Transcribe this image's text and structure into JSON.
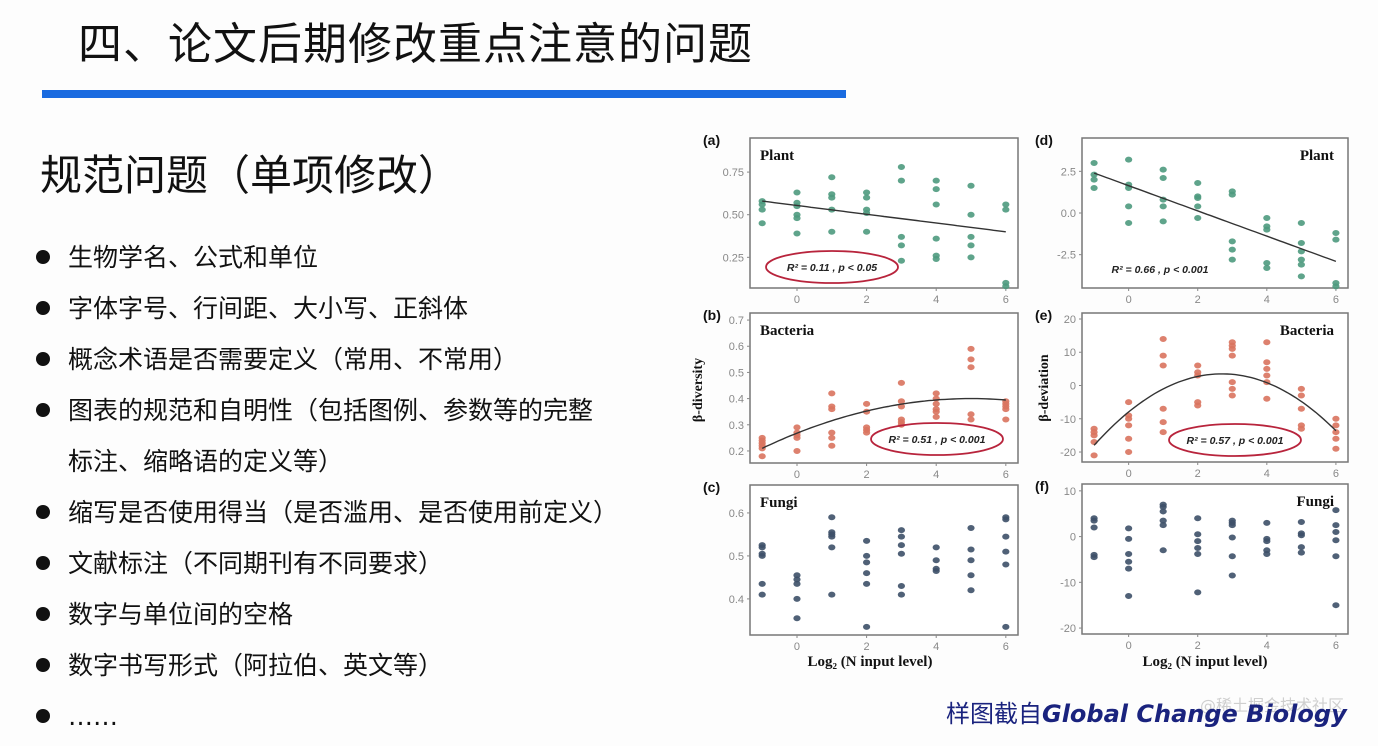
{
  "slide": {
    "title": "四、论文后期修改重点注意的问题",
    "accent_color": "#1a6be0",
    "subheading": "规范问题（单项修改）",
    "bullets": [
      "生物学名、公式和单位",
      "字体字号、行间距、大小写、正斜体",
      "概念术语是否需要定义（常用、不常用）",
      "图表的规范和自明性（包括图例、参数等的完整",
      "标注、缩略语的定义等）",
      "缩写是否使用得当（是否滥用、是否使用前定义）",
      "文献标注（不同期刊有不同要求）",
      "数字与单位间的空格",
      "数字书写形式（阿拉伯、英文等）",
      "……"
    ],
    "caption_prefix": "样图截自",
    "caption_journal": "Global Change Biology",
    "caption_color": "#1a237e",
    "watermark": "@稀土掘金技术社区"
  },
  "figure": {
    "y_label_left": "β-diversity",
    "y_label_right": "β-deviation",
    "x_label": "Log₂ (N input level)",
    "highlight_color": "#b8243c"
  },
  "chart_data": [
    {
      "type": "scatter",
      "panel": "(a)",
      "title": "Plant",
      "color": "#4e9a7e",
      "xlim": [
        -1.35,
        6.35
      ],
      "ylim": [
        0.07,
        0.95
      ],
      "x_ticks": [
        0,
        2,
        4,
        6
      ],
      "x_tick_labels": [
        "0",
        "2",
        "4",
        "6"
      ],
      "y_ticks": [
        0.25,
        0.5,
        0.75
      ],
      "y_tick_labels": [
        "0.25",
        "0.50",
        "0.75"
      ],
      "fit": {
        "kind": "linear",
        "coef": [
          0.554,
          -0.0257
        ]
      },
      "stats": "R² = 0.11 ,  p < 0.05",
      "highlighted": true,
      "points": [
        [
          -1,
          0.58
        ],
        [
          -1,
          0.56
        ],
        [
          -1,
          0.53
        ],
        [
          -1,
          0.45
        ],
        [
          0,
          0.63
        ],
        [
          0,
          0.57
        ],
        [
          0,
          0.55
        ],
        [
          0,
          0.5
        ],
        [
          0,
          0.48
        ],
        [
          0,
          0.39
        ],
        [
          1,
          0.72
        ],
        [
          1,
          0.62
        ],
        [
          1,
          0.6
        ],
        [
          1,
          0.53
        ],
        [
          1,
          0.4
        ],
        [
          2,
          0.63
        ],
        [
          2,
          0.6
        ],
        [
          2,
          0.53
        ],
        [
          2,
          0.51
        ],
        [
          2,
          0.4
        ],
        [
          3,
          0.78
        ],
        [
          3,
          0.7
        ],
        [
          3,
          0.37
        ],
        [
          3,
          0.32
        ],
        [
          3,
          0.23
        ],
        [
          4,
          0.7
        ],
        [
          4,
          0.65
        ],
        [
          4,
          0.56
        ],
        [
          4,
          0.36
        ],
        [
          4,
          0.26
        ],
        [
          4,
          0.24
        ],
        [
          5,
          0.67
        ],
        [
          5,
          0.5
        ],
        [
          5,
          0.37
        ],
        [
          5,
          0.32
        ],
        [
          5,
          0.25
        ],
        [
          6,
          0.56
        ],
        [
          6,
          0.53
        ],
        [
          6,
          0.1
        ],
        [
          6,
          0.08
        ]
      ]
    },
    {
      "type": "scatter",
      "panel": "(b)",
      "title": "Bacteria",
      "color": "#d9735e",
      "xlim": [
        -1.35,
        6.35
      ],
      "ylim": [
        0.154,
        0.727
      ],
      "x_ticks": [
        0,
        2,
        4,
        6
      ],
      "x_tick_labels": [
        "0",
        "2",
        "4",
        "6"
      ],
      "y_ticks": [
        0.2,
        0.3,
        0.4,
        0.5,
        0.6,
        0.7
      ],
      "y_tick_labels": [
        "0.2",
        "0.3",
        "0.4",
        "0.5",
        "0.6",
        "0.7"
      ],
      "fit": {
        "kind": "quadratic",
        "vertex": [
          5,
          0.4
        ],
        "a": -0.00528
      },
      "stats": "R² = 0.51 ,  p < 0.001",
      "highlighted": true,
      "points": [
        [
          -1,
          0.25
        ],
        [
          -1,
          0.24
        ],
        [
          -1,
          0.23
        ],
        [
          -1,
          0.22
        ],
        [
          -1,
          0.21
        ],
        [
          -1,
          0.18
        ],
        [
          0,
          0.29
        ],
        [
          0,
          0.27
        ],
        [
          0,
          0.26
        ],
        [
          0,
          0.25
        ],
        [
          0,
          0.2
        ],
        [
          1,
          0.42
        ],
        [
          1,
          0.37
        ],
        [
          1,
          0.36
        ],
        [
          1,
          0.27
        ],
        [
          1,
          0.25
        ],
        [
          1,
          0.22
        ],
        [
          2,
          0.38
        ],
        [
          2,
          0.35
        ],
        [
          2,
          0.29
        ],
        [
          2,
          0.28
        ],
        [
          2,
          0.27
        ],
        [
          3,
          0.46
        ],
        [
          3,
          0.39
        ],
        [
          3,
          0.37
        ],
        [
          3,
          0.32
        ],
        [
          3,
          0.31
        ],
        [
          3,
          0.3
        ],
        [
          4,
          0.42
        ],
        [
          4,
          0.4
        ],
        [
          4,
          0.38
        ],
        [
          4,
          0.36
        ],
        [
          4,
          0.35
        ],
        [
          4,
          0.33
        ],
        [
          5,
          0.59
        ],
        [
          5,
          0.55
        ],
        [
          5,
          0.52
        ],
        [
          5,
          0.34
        ],
        [
          5,
          0.32
        ],
        [
          6,
          0.39
        ],
        [
          6,
          0.38
        ],
        [
          6,
          0.37
        ],
        [
          6,
          0.36
        ],
        [
          6,
          0.32
        ]
      ]
    },
    {
      "type": "scatter",
      "panel": "(c)",
      "title": "Fungi",
      "color": "#3d5068",
      "xlim": [
        -1.35,
        6.35
      ],
      "ylim": [
        0.316,
        0.665
      ],
      "x_ticks": [
        0,
        2,
        4,
        6
      ],
      "x_tick_labels": [
        "0",
        "2",
        "4",
        "6"
      ],
      "y_ticks": [
        0.4,
        0.5,
        0.6
      ],
      "y_tick_labels": [
        "0.4",
        "0.5",
        "0.6"
      ],
      "fit": null,
      "stats": "",
      "highlighted": false,
      "points": [
        [
          -1,
          0.525
        ],
        [
          -1,
          0.52
        ],
        [
          -1,
          0.505
        ],
        [
          -1,
          0.5
        ],
        [
          -1,
          0.435
        ],
        [
          -1,
          0.41
        ],
        [
          0,
          0.455
        ],
        [
          0,
          0.445
        ],
        [
          0,
          0.435
        ],
        [
          0,
          0.4
        ],
        [
          0,
          0.355
        ],
        [
          1,
          0.59
        ],
        [
          1,
          0.555
        ],
        [
          1,
          0.55
        ],
        [
          1,
          0.545
        ],
        [
          1,
          0.52
        ],
        [
          1,
          0.41
        ],
        [
          2,
          0.535
        ],
        [
          2,
          0.5
        ],
        [
          2,
          0.485
        ],
        [
          2,
          0.46
        ],
        [
          2,
          0.435
        ],
        [
          2,
          0.335
        ],
        [
          3,
          0.56
        ],
        [
          3,
          0.545
        ],
        [
          3,
          0.525
        ],
        [
          3,
          0.505
        ],
        [
          3,
          0.43
        ],
        [
          3,
          0.41
        ],
        [
          4,
          0.52
        ],
        [
          4,
          0.49
        ],
        [
          4,
          0.47
        ],
        [
          4,
          0.465
        ],
        [
          5,
          0.565
        ],
        [
          5,
          0.515
        ],
        [
          5,
          0.49
        ],
        [
          5,
          0.455
        ],
        [
          5,
          0.42
        ],
        [
          6,
          0.59
        ],
        [
          6,
          0.585
        ],
        [
          6,
          0.545
        ],
        [
          6,
          0.51
        ],
        [
          6,
          0.48
        ],
        [
          6,
          0.335
        ]
      ]
    },
    {
      "type": "scatter",
      "panel": "(d)",
      "title": "Plant",
      "color": "#4e9a7e",
      "xlim": [
        -1.35,
        6.35
      ],
      "ylim": [
        -4.5,
        4.5
      ],
      "x_ticks": [
        0,
        2,
        4,
        6
      ],
      "x_tick_labels": [
        "0",
        "2",
        "4",
        "6"
      ],
      "y_ticks": [
        -2.5,
        0,
        2.5
      ],
      "y_tick_labels": [
        "-2.5",
        "0.0",
        "2.5"
      ],
      "fit": {
        "kind": "linear",
        "coef": [
          1.64,
          -0.757
        ]
      },
      "stats": "R² = 0.66 ,  p < 0.001",
      "highlighted": false,
      "points": [
        [
          -1,
          3.0
        ],
        [
          -1,
          2.3
        ],
        [
          -1,
          2.0
        ],
        [
          -1,
          1.5
        ],
        [
          0,
          3.2
        ],
        [
          0,
          1.7
        ],
        [
          0,
          1.5
        ],
        [
          0,
          0.4
        ],
        [
          0,
          -0.6
        ],
        [
          1,
          2.6
        ],
        [
          1,
          2.1
        ],
        [
          1,
          0.8
        ],
        [
          1,
          0.4
        ],
        [
          1,
          -0.5
        ],
        [
          2,
          1.8
        ],
        [
          2,
          1.0
        ],
        [
          2,
          0.9
        ],
        [
          2,
          0.4
        ],
        [
          2,
          -0.3
        ],
        [
          3,
          1.3
        ],
        [
          3,
          1.1
        ],
        [
          3,
          -1.7
        ],
        [
          3,
          -2.2
        ],
        [
          3,
          -2.8
        ],
        [
          4,
          -0.3
        ],
        [
          4,
          -0.8
        ],
        [
          4,
          -1.0
        ],
        [
          4,
          -3.0
        ],
        [
          4,
          -3.3
        ],
        [
          5,
          -0.6
        ],
        [
          5,
          -1.8
        ],
        [
          5,
          -2.3
        ],
        [
          5,
          -2.8
        ],
        [
          5,
          -3.1
        ],
        [
          5,
          -3.8
        ],
        [
          6,
          -1.2
        ],
        [
          6,
          -1.6
        ],
        [
          6,
          -4.2
        ],
        [
          6,
          -4.4
        ]
      ]
    },
    {
      "type": "scatter",
      "panel": "(e)",
      "title": "Bacteria",
      "color": "#d9735e",
      "xlim": [
        -1.35,
        6.35
      ],
      "ylim": [
        -23,
        21.8
      ],
      "x_ticks": [
        0,
        2,
        4,
        6
      ],
      "x_tick_labels": [
        "0",
        "2",
        "4",
        "6"
      ],
      "y_ticks": [
        -20,
        -10,
        0,
        10,
        20
      ],
      "y_tick_labels": [
        "-20",
        "-10",
        "0",
        "10",
        "20"
      ],
      "fit": {
        "kind": "quadratic",
        "vertex": [
          2.7,
          3.5
        ],
        "a": -1.57
      },
      "stats": "R² = 0.57 ,  p < 0.001",
      "highlighted": true,
      "points": [
        [
          -1,
          -13
        ],
        [
          -1,
          -14
        ],
        [
          -1,
          -15
        ],
        [
          -1,
          -17
        ],
        [
          -1,
          -21
        ],
        [
          0,
          -5
        ],
        [
          0,
          -9
        ],
        [
          0,
          -10
        ],
        [
          0,
          -12
        ],
        [
          0,
          -16
        ],
        [
          0,
          -20
        ],
        [
          1,
          14
        ],
        [
          1,
          9
        ],
        [
          1,
          6
        ],
        [
          1,
          -7
        ],
        [
          1,
          -11
        ],
        [
          1,
          -14
        ],
        [
          2,
          6
        ],
        [
          2,
          4
        ],
        [
          2,
          3
        ],
        [
          2,
          -5
        ],
        [
          2,
          -6
        ],
        [
          3,
          13
        ],
        [
          3,
          12
        ],
        [
          3,
          11
        ],
        [
          3,
          9
        ],
        [
          3,
          1
        ],
        [
          3,
          -1
        ],
        [
          3,
          -3
        ],
        [
          4,
          13
        ],
        [
          4,
          7
        ],
        [
          4,
          5
        ],
        [
          4,
          3
        ],
        [
          4,
          1
        ],
        [
          4,
          -4
        ],
        [
          5,
          -1
        ],
        [
          5,
          -3
        ],
        [
          5,
          -7
        ],
        [
          5,
          -12
        ],
        [
          5,
          -13
        ],
        [
          6,
          -10
        ],
        [
          6,
          -12
        ],
        [
          6,
          -14
        ],
        [
          6,
          -16
        ],
        [
          6,
          -19
        ]
      ]
    },
    {
      "type": "scatter",
      "panel": "(f)",
      "title": "Fungi",
      "color": "#3d5068",
      "xlim": [
        -1.35,
        6.35
      ],
      "ylim": [
        -21.3,
        11.5
      ],
      "x_ticks": [
        0,
        2,
        4,
        6
      ],
      "x_tick_labels": [
        "0",
        "2",
        "4",
        "6"
      ],
      "y_ticks": [
        -20,
        -10,
        0,
        10
      ],
      "y_tick_labels": [
        "-20",
        "-10",
        "0",
        "10"
      ],
      "fit": null,
      "stats": "",
      "highlighted": false,
      "points": [
        [
          -1,
          4
        ],
        [
          -1,
          3.5
        ],
        [
          -1,
          2
        ],
        [
          -1,
          -4
        ],
        [
          -1,
          -4.5
        ],
        [
          0,
          1.8
        ],
        [
          0,
          -0.5
        ],
        [
          0,
          -3.8
        ],
        [
          0,
          -5.5
        ],
        [
          0,
          -7
        ],
        [
          0,
          -13
        ],
        [
          1,
          7
        ],
        [
          1,
          6.5
        ],
        [
          1,
          5.5
        ],
        [
          1,
          3.5
        ],
        [
          1,
          2.5
        ],
        [
          1,
          -3
        ],
        [
          2,
          4
        ],
        [
          2,
          0.5
        ],
        [
          2,
          -1
        ],
        [
          2,
          -2.5
        ],
        [
          2,
          -3.8
        ],
        [
          2,
          -12.2
        ],
        [
          3,
          3.5
        ],
        [
          3,
          3
        ],
        [
          3,
          2.5
        ],
        [
          3,
          -0.2
        ],
        [
          3,
          -4.3
        ],
        [
          3,
          -8.5
        ],
        [
          4,
          3
        ],
        [
          4,
          -0.5
        ],
        [
          4,
          -1
        ],
        [
          4,
          -3
        ],
        [
          4,
          -3.8
        ],
        [
          5,
          3.2
        ],
        [
          5,
          0.7
        ],
        [
          5,
          0.3
        ],
        [
          5,
          -2.3
        ],
        [
          5,
          -3.5
        ],
        [
          6,
          5.8
        ],
        [
          6,
          2.5
        ],
        [
          6,
          1
        ],
        [
          6,
          -0.8
        ],
        [
          6,
          -4.3
        ],
        [
          6,
          -15
        ]
      ]
    }
  ]
}
